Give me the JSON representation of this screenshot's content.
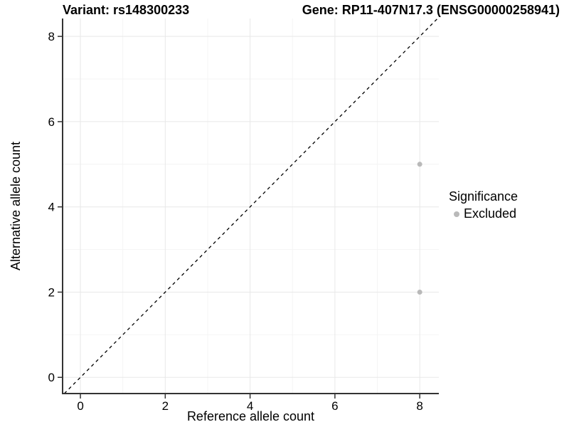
{
  "chart_data": {
    "type": "scatter",
    "title_left": "Variant: rs148300233",
    "title_right": "Gene: RP11-407N17.3 (ENSG00000258941)",
    "xlabel": "Reference allele count",
    "ylabel": "Alternative allele count",
    "xlim": [
      -0.42,
      8.45
    ],
    "ylim": [
      -0.38,
      8.42
    ],
    "xticks": [
      0,
      2,
      4,
      6,
      8
    ],
    "yticks": [
      0,
      2,
      4,
      6,
      8
    ],
    "minor_xticks": [
      1,
      3,
      5,
      7
    ],
    "minor_yticks": [
      1,
      3,
      5,
      7
    ],
    "grid": true,
    "identity_line": {
      "style": "dashed",
      "slope": 1,
      "intercept": 0,
      "color": "#000000"
    },
    "series": [
      {
        "name": "Excluded",
        "color": "#b9b9b9",
        "points": [
          {
            "x": 8,
            "y": 5
          },
          {
            "x": 8,
            "y": 2
          }
        ]
      }
    ],
    "legend": {
      "title": "Significance",
      "position": "right",
      "items": [
        {
          "label": "Excluded",
          "color": "#b9b9b9"
        }
      ]
    },
    "colors": {
      "background": "#ffffff",
      "grid_major": "#e8e8e8",
      "grid_minor": "#f4f4f4",
      "axis_line": "#333333",
      "tick_mark": "#333333",
      "text": "#000000"
    }
  }
}
